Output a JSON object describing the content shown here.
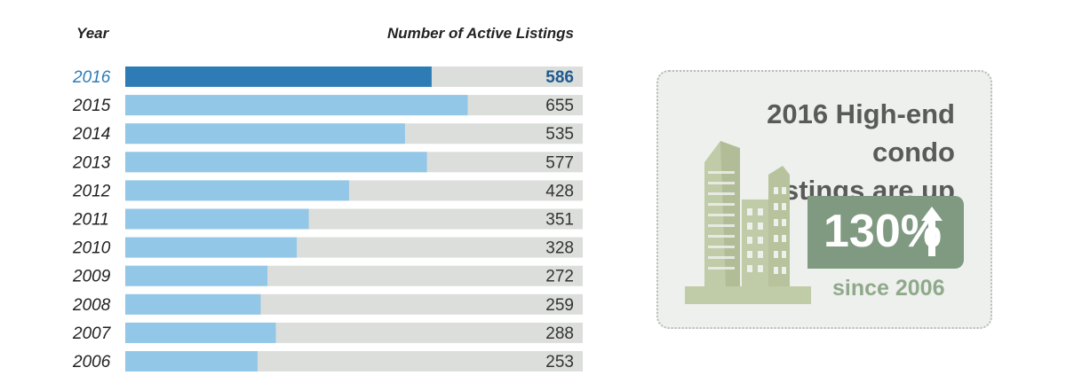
{
  "header": {
    "year_label": "Year",
    "count_label": "Number of Active Listings"
  },
  "colors": {
    "highlight_bar": "#2e7cb6",
    "bar": "#93c7e7",
    "track": "#dcdedb",
    "highlight_text": "#1f5b8f"
  },
  "chart_data": {
    "type": "bar",
    "orientation": "horizontal",
    "categories": [
      "2016",
      "2015",
      "2014",
      "2013",
      "2012",
      "2011",
      "2010",
      "2009",
      "2008",
      "2007",
      "2006"
    ],
    "values": [
      586,
      655,
      535,
      577,
      428,
      351,
      328,
      272,
      259,
      288,
      253
    ],
    "highlight": "2016",
    "xlim": [
      0,
      875
    ],
    "xlabel": "Number of Active Listings",
    "ylabel": "Year",
    "grid": false
  },
  "callout": {
    "title_line1": "2016 High-end condo",
    "title_line2": "listings are up",
    "percent": "130%",
    "since": "since 2006",
    "icons": [
      "buildings-icon",
      "arrow-up-icon"
    ]
  }
}
